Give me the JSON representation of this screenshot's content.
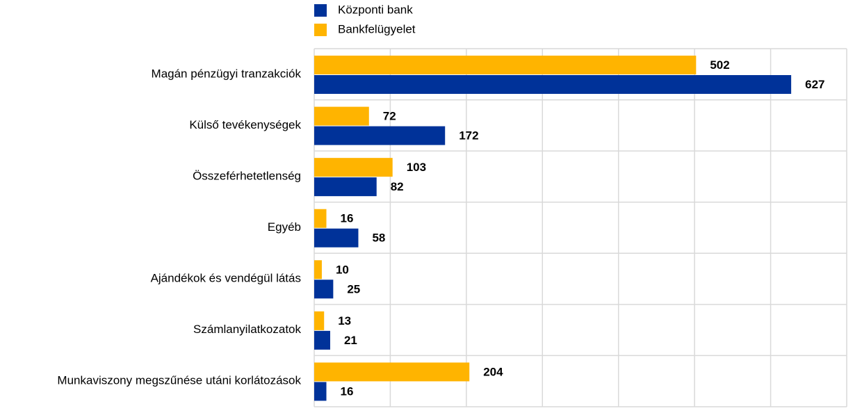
{
  "chart_data": {
    "type": "hbar",
    "categories": [
      "Magán pénzügyi tranzakciók",
      "Külső tevékenységek",
      "Összeférhetetlenség",
      "Egyéb",
      "Ajándékok és vendégül látás",
      "Számlanyilatkozatok",
      "Munkaviszony megszűnése utáni korlátozások"
    ],
    "series": [
      {
        "name": "Központi bank",
        "color": "#003299",
        "values": [
          627,
          172,
          82,
          58,
          25,
          21,
          16
        ]
      },
      {
        "name": "Bankfelügyelet",
        "color": "#ffb400",
        "values": [
          502,
          72,
          103,
          16,
          10,
          13,
          204
        ]
      }
    ],
    "xlim": [
      0,
      700
    ],
    "xticks": [
      0,
      100,
      200,
      300,
      400,
      500,
      600,
      700
    ],
    "grid": true
  }
}
